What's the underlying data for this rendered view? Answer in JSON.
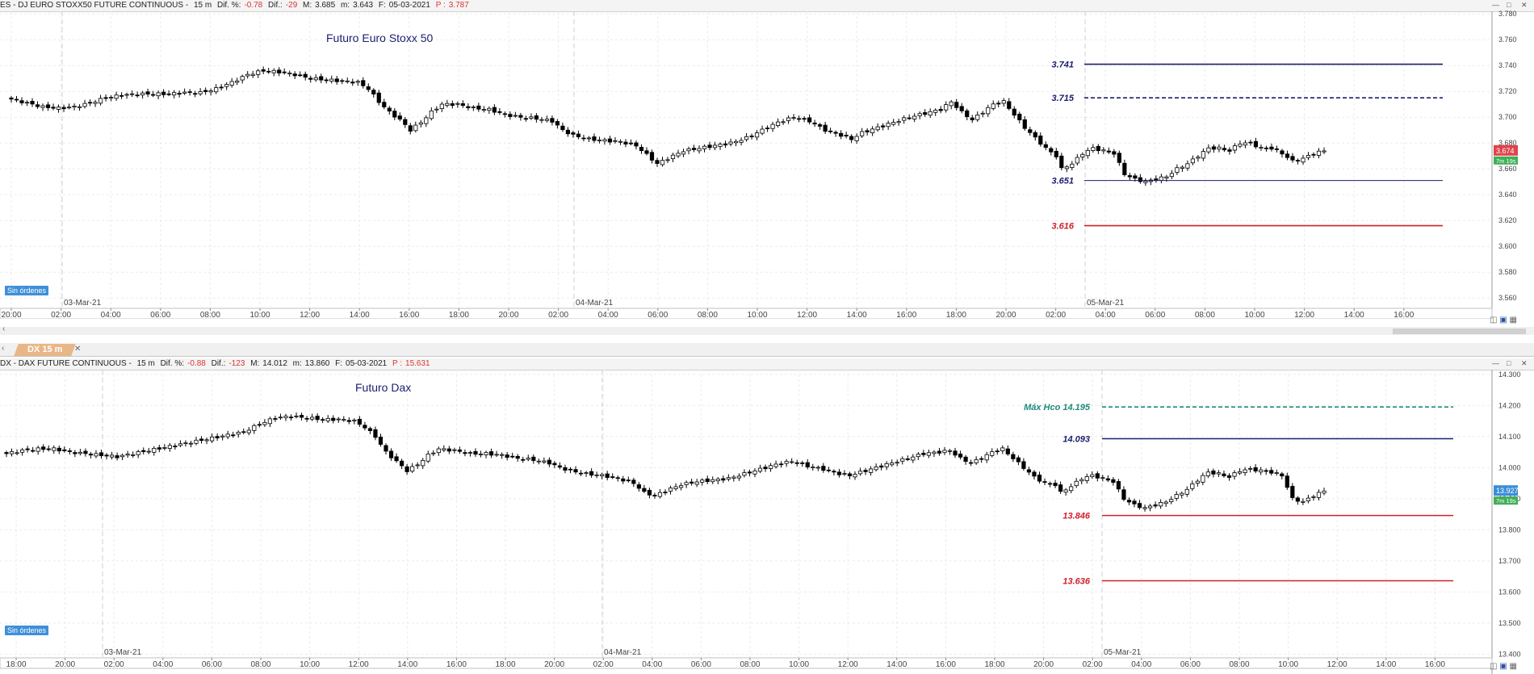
{
  "colors": {
    "navy": "#1a1f6e",
    "red": "#d0202a",
    "teal": "#1f8a7a",
    "grid": "#e3e3e3",
    "bull": "#ffffff",
    "bear": "#000000"
  },
  "panels": [
    {
      "id": "es",
      "header": {
        "symbol": "ES - DJ EURO STOXX50 FUTURE CONTINUOUS -",
        "timeframe": "15 m",
        "dif_pct_label": "Dif. %:",
        "dif_pct": "-0.78",
        "dif_label": "Dif.:",
        "dif": "-29",
        "max_label": "M:",
        "max": "3.685",
        "min_label": "m:",
        "min": "3.643",
        "date_label": "F:",
        "date": "05-03-2021",
        "p_label": "P :",
        "p": "3.787"
      },
      "title": "Futuro Euro Stoxx 50",
      "orders_badge": "Sin órdenes",
      "y_ticks": [
        "3.780",
        "3.760",
        "3.740",
        "3.720",
        "3.700",
        "3.680",
        "3.660",
        "3.640",
        "3.620",
        "3.600",
        "3.580",
        "3.560"
      ],
      "price_tag": "3.674",
      "timer_tag": "7m 19s",
      "date_markers": [
        "03-Mar-21",
        "04-Mar-21",
        "05-Mar-21"
      ],
      "x_ticks": [
        "20:00",
        "02:00",
        "04:00",
        "06:00",
        "08:00",
        "10:00",
        "12:00",
        "14:00",
        "16:00",
        "18:00",
        "20:00",
        "02:00",
        "04:00",
        "06:00",
        "08:00",
        "10:00",
        "12:00",
        "14:00",
        "16:00",
        "18:00",
        "20:00",
        "02:00",
        "04:00",
        "06:00",
        "08:00",
        "10:00",
        "12:00",
        "14:00",
        "16:00"
      ],
      "levels": [
        {
          "label": "3.741",
          "value": 3741,
          "color": "navy",
          "style": "solid"
        },
        {
          "label": "3.715",
          "value": 3715,
          "color": "navy",
          "style": "dashed"
        },
        {
          "label": "3.651",
          "value": 3651,
          "color": "navy",
          "style": "thin"
        },
        {
          "label": "3.616",
          "value": 3616,
          "color": "red",
          "style": "solid"
        }
      ]
    },
    {
      "id": "dx",
      "tab_label": "DX 15 m",
      "header": {
        "symbol": "DX - DAX FUTURE CONTINUOUS -",
        "timeframe": "15 m",
        "dif_pct_label": "Dif. %:",
        "dif_pct": "-0.88",
        "dif_label": "Dif.:",
        "dif": "-123",
        "max_label": "M:",
        "max": "14.012",
        "min_label": "m:",
        "min": "13.860",
        "date_label": "F:",
        "date": "05-03-2021",
        "p_label": "P :",
        "p": "15.631"
      },
      "title": "Futuro Dax",
      "orders_badge": "Sin órdenes",
      "y_ticks": [
        "14.300",
        "14.200",
        "14.100",
        "14.000",
        "13.900",
        "13.800",
        "13.700",
        "13.600",
        "13.500",
        "13.400"
      ],
      "price_tag": "13.927",
      "timer_tag": "7m 19s",
      "date_markers": [
        "03-Mar-21",
        "04-Mar-21",
        "05-Mar-21"
      ],
      "x_ticks": [
        "18:00",
        "20:00",
        "02:00",
        "04:00",
        "06:00",
        "08:00",
        "10:00",
        "12:00",
        "14:00",
        "16:00",
        "18:00",
        "20:00",
        "02:00",
        "04:00",
        "06:00",
        "08:00",
        "10:00",
        "12:00",
        "14:00",
        "16:00",
        "18:00",
        "20:00",
        "02:00",
        "04:00",
        "06:00",
        "08:00",
        "10:00",
        "12:00",
        "14:00",
        "16:00"
      ],
      "levels": [
        {
          "label": "Máx Hco 14.195",
          "value": 14195,
          "color": "teal",
          "style": "dashed"
        },
        {
          "label": "14.093",
          "value": 14093,
          "color": "navy",
          "style": "solid"
        },
        {
          "label": "13.846",
          "value": 13846,
          "color": "red",
          "style": "solid"
        },
        {
          "label": "13.636",
          "value": 13636,
          "color": "red",
          "style": "solid"
        }
      ]
    }
  ],
  "chart_data": [
    {
      "type": "candlestick",
      "title": "Futuro Euro Stoxx 50",
      "ylim": [
        3552,
        3782
      ],
      "bar_interval": "15 m",
      "close_path": [
        [
          0,
          3714
        ],
        [
          3,
          3711
        ],
        [
          6,
          3708
        ],
        [
          9,
          3707
        ],
        [
          12,
          3708
        ],
        [
          15,
          3711
        ],
        [
          18,
          3715
        ],
        [
          21,
          3717
        ],
        [
          24,
          3718
        ],
        [
          27,
          3718
        ],
        [
          30,
          3718
        ],
        [
          33,
          3719
        ],
        [
          36,
          3719
        ],
        [
          39,
          3722
        ],
        [
          42,
          3727
        ],
        [
          45,
          3733
        ],
        [
          48,
          3736
        ],
        [
          51,
          3735
        ],
        [
          54,
          3733
        ],
        [
          57,
          3730
        ],
        [
          60,
          3729
        ],
        [
          63,
          3728
        ],
        [
          66,
          3727
        ],
        [
          68,
          3722
        ],
        [
          70,
          3712
        ],
        [
          72,
          3704
        ],
        [
          74,
          3698
        ],
        [
          76,
          3690
        ],
        [
          78,
          3696
        ],
        [
          80,
          3704
        ],
        [
          82,
          3710
        ],
        [
          85,
          3710
        ],
        [
          88,
          3707
        ],
        [
          91,
          3706
        ],
        [
          94,
          3702
        ],
        [
          97,
          3700
        ],
        [
          100,
          3699
        ],
        [
          103,
          3697
        ],
        [
          105,
          3690
        ],
        [
          107,
          3686
        ],
        [
          110,
          3683
        ],
        [
          113,
          3682
        ],
        [
          116,
          3681
        ],
        [
          119,
          3678
        ],
        [
          121,
          3671
        ],
        [
          123,
          3664
        ],
        [
          125,
          3668
        ],
        [
          128,
          3674
        ],
        [
          131,
          3676
        ],
        [
          134,
          3678
        ],
        [
          137,
          3680
        ],
        [
          140,
          3684
        ],
        [
          143,
          3690
        ],
        [
          146,
          3696
        ],
        [
          149,
          3700
        ],
        [
          152,
          3697
        ],
        [
          155,
          3690
        ],
        [
          158,
          3686
        ],
        [
          160,
          3683
        ],
        [
          162,
          3688
        ],
        [
          165,
          3692
        ],
        [
          168,
          3696
        ],
        [
          171,
          3700
        ],
        [
          174,
          3703
        ],
        [
          177,
          3706
        ],
        [
          179,
          3712
        ],
        [
          181,
          3704
        ],
        [
          183,
          3698
        ],
        [
          185,
          3704
        ],
        [
          187,
          3710
        ],
        [
          189,
          3712
        ],
        [
          191,
          3702
        ],
        [
          193,
          3692
        ],
        [
          195,
          3684
        ],
        [
          197,
          3676
        ],
        [
          199,
          3670
        ],
        [
          200,
          3660
        ],
        [
          202,
          3664
        ],
        [
          204,
          3672
        ],
        [
          206,
          3676
        ],
        [
          208,
          3674
        ],
        [
          210,
          3672
        ],
        [
          212,
          3656
        ],
        [
          214,
          3652
        ],
        [
          216,
          3650
        ],
        [
          218,
          3652
        ],
        [
          220,
          3654
        ],
        [
          222,
          3660
        ],
        [
          224,
          3664
        ],
        [
          226,
          3670
        ],
        [
          228,
          3676
        ],
        [
          230,
          3676
        ],
        [
          232,
          3674
        ],
        [
          234,
          3680
        ],
        [
          236,
          3680
        ],
        [
          238,
          3676
        ],
        [
          240,
          3676
        ],
        [
          242,
          3672
        ],
        [
          244,
          3666
        ],
        [
          246,
          3668
        ],
        [
          248,
          3672
        ],
        [
          250,
          3674
        ]
      ]
    },
    {
      "type": "candlestick",
      "title": "Futuro Dax",
      "ylim": [
        13388,
        14315
      ],
      "bar_interval": "15 m",
      "close_path": [
        [
          0,
          14045
        ],
        [
          3,
          14055
        ],
        [
          6,
          14060
        ],
        [
          9,
          14060
        ],
        [
          12,
          14050
        ],
        [
          15,
          14045
        ],
        [
          18,
          14040
        ],
        [
          21,
          14035
        ],
        [
          24,
          14045
        ],
        [
          27,
          14055
        ],
        [
          30,
          14065
        ],
        [
          33,
          14075
        ],
        [
          36,
          14085
        ],
        [
          39,
          14095
        ],
        [
          42,
          14105
        ],
        [
          45,
          14115
        ],
        [
          48,
          14140
        ],
        [
          51,
          14160
        ],
        [
          54,
          14165
        ],
        [
          57,
          14160
        ],
        [
          60,
          14155
        ],
        [
          63,
          14155
        ],
        [
          66,
          14150
        ],
        [
          68,
          14130
        ],
        [
          70,
          14100
        ],
        [
          72,
          14050
        ],
        [
          74,
          14020
        ],
        [
          76,
          13990
        ],
        [
          78,
          14010
        ],
        [
          80,
          14040
        ],
        [
          82,
          14060
        ],
        [
          85,
          14055
        ],
        [
          88,
          14045
        ],
        [
          91,
          14045
        ],
        [
          94,
          14040
        ],
        [
          97,
          14030
        ],
        [
          100,
          14025
        ],
        [
          103,
          14015
        ],
        [
          105,
          14000
        ],
        [
          107,
          13990
        ],
        [
          110,
          13980
        ],
        [
          113,
          13975
        ],
        [
          116,
          13965
        ],
        [
          119,
          13950
        ],
        [
          121,
          13920
        ],
        [
          123,
          13910
        ],
        [
          125,
          13925
        ],
        [
          128,
          13945
        ],
        [
          131,
          13955
        ],
        [
          134,
          13960
        ],
        [
          137,
          13965
        ],
        [
          140,
          13980
        ],
        [
          143,
          13995
        ],
        [
          146,
          14010
        ],
        [
          149,
          14020
        ],
        [
          152,
          14005
        ],
        [
          155,
          13995
        ],
        [
          158,
          13980
        ],
        [
          160,
          13975
        ],
        [
          162,
          13985
        ],
        [
          165,
          14000
        ],
        [
          168,
          14015
        ],
        [
          171,
          14030
        ],
        [
          174,
          14045
        ],
        [
          177,
          14050
        ],
        [
          179,
          14055
        ],
        [
          181,
          14030
        ],
        [
          183,
          14015
        ],
        [
          185,
          14030
        ],
        [
          187,
          14050
        ],
        [
          189,
          14060
        ],
        [
          191,
          14030
        ],
        [
          193,
          14000
        ],
        [
          195,
          13970
        ],
        [
          197,
          13950
        ],
        [
          199,
          13945
        ],
        [
          200,
          13920
        ],
        [
          202,
          13940
        ],
        [
          204,
          13965
        ],
        [
          206,
          13975
        ],
        [
          208,
          13965
        ],
        [
          210,
          13955
        ],
        [
          212,
          13900
        ],
        [
          214,
          13880
        ],
        [
          216,
          13870
        ],
        [
          218,
          13880
        ],
        [
          220,
          13890
        ],
        [
          222,
          13910
        ],
        [
          224,
          13930
        ],
        [
          226,
          13960
        ],
        [
          228,
          13985
        ],
        [
          230,
          13980
        ],
        [
          232,
          13970
        ],
        [
          234,
          13990
        ],
        [
          236,
          13995
        ],
        [
          238,
          13990
        ],
        [
          240,
          13985
        ],
        [
          242,
          13975
        ],
        [
          244,
          13900
        ],
        [
          246,
          13890
        ],
        [
          248,
          13910
        ],
        [
          250,
          13925
        ]
      ]
    }
  ]
}
